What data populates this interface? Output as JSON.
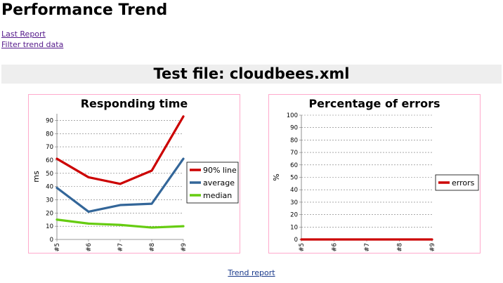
{
  "page": {
    "title": "Performance Trend",
    "links": {
      "last_report": "Last Report",
      "filter_trend": "Filter trend data"
    },
    "test_file": "Test file: cloudbees.xml",
    "footer_link": "Trend report"
  },
  "chart_data": [
    {
      "type": "line",
      "title": "Responding time",
      "xlabel": "",
      "ylabel": "ms",
      "x": [
        "#5",
        "#6",
        "#7",
        "#8",
        "#9"
      ],
      "ylim": [
        0,
        95
      ],
      "yticks": [
        0,
        10,
        20,
        30,
        40,
        50,
        60,
        70,
        80,
        90
      ],
      "grid": true,
      "legend_position": "right",
      "series": [
        {
          "name": "90% line",
          "color": "#cc0000",
          "values": [
            61,
            47,
            42,
            52,
            93
          ]
        },
        {
          "name": "average",
          "color": "#336699",
          "values": [
            39,
            21,
            26,
            27,
            61
          ]
        },
        {
          "name": "median",
          "color": "#66cc11",
          "values": [
            15,
            12,
            11,
            9,
            10
          ]
        }
      ]
    },
    {
      "type": "line",
      "title": "Percentage of errors",
      "xlabel": "",
      "ylabel": "%",
      "x": [
        "#5",
        "#6",
        "#7",
        "#8",
        "#9"
      ],
      "ylim": [
        0,
        100
      ],
      "yticks": [
        0,
        10,
        20,
        30,
        40,
        50,
        60,
        70,
        80,
        90,
        100
      ],
      "grid": true,
      "legend_position": "right",
      "series": [
        {
          "name": "errors",
          "color": "#cc0000",
          "values": [
            0,
            0,
            0,
            0,
            0
          ]
        }
      ]
    }
  ]
}
